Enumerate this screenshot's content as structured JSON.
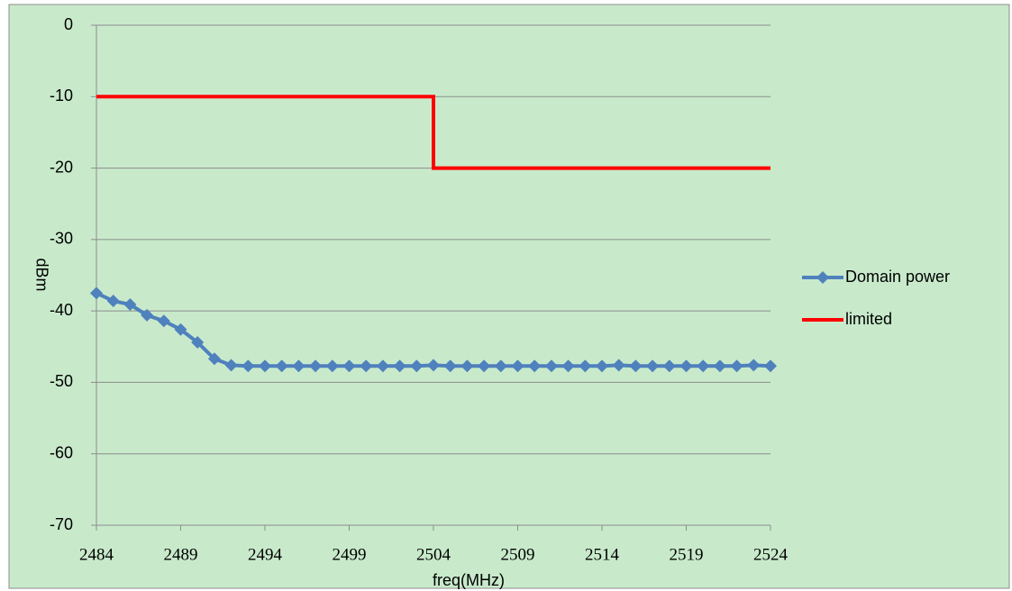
{
  "chart_data": {
    "type": "line",
    "xlabel": "freq(MHz)",
    "ylabel": "dBm",
    "xlim": [
      2484,
      2524
    ],
    "xticks": [
      2484,
      2489,
      2494,
      2499,
      2504,
      2509,
      2514,
      2519,
      2524
    ],
    "ylim": [
      -70,
      0
    ],
    "yticks": [
      0,
      -10,
      -20,
      -30,
      -40,
      -50,
      -60,
      -70
    ],
    "grid": true,
    "legend": "right",
    "series": [
      {
        "name": "Domain power",
        "color": "#4f81bd",
        "marker": "diamond",
        "x": [
          2484,
          2485,
          2486,
          2487,
          2488,
          2489,
          2490,
          2491,
          2492,
          2493,
          2494,
          2495,
          2496,
          2497,
          2498,
          2499,
          2500,
          2501,
          2502,
          2503,
          2504,
          2505,
          2506,
          2507,
          2508,
          2509,
          2510,
          2511,
          2512,
          2513,
          2514,
          2515,
          2516,
          2517,
          2518,
          2519,
          2520,
          2521,
          2522,
          2523,
          2524
        ],
        "values": [
          -37.5,
          -38.6,
          -39.1,
          -40.6,
          -41.4,
          -42.6,
          -44.4,
          -46.7,
          -47.6,
          -47.7,
          -47.7,
          -47.7,
          -47.7,
          -47.7,
          -47.7,
          -47.7,
          -47.7,
          -47.7,
          -47.7,
          -47.7,
          -47.6,
          -47.7,
          -47.7,
          -47.7,
          -47.7,
          -47.7,
          -47.7,
          -47.7,
          -47.7,
          -47.7,
          -47.7,
          -47.6,
          -47.7,
          -47.7,
          -47.7,
          -47.7,
          -47.7,
          -47.7,
          -47.7,
          -47.6,
          -47.7
        ]
      },
      {
        "name": "limited",
        "color": "#ff0000",
        "x": [
          2484,
          2504,
          2504,
          2524
        ],
        "values": [
          -10,
          -10,
          -20,
          -20
        ]
      }
    ]
  }
}
